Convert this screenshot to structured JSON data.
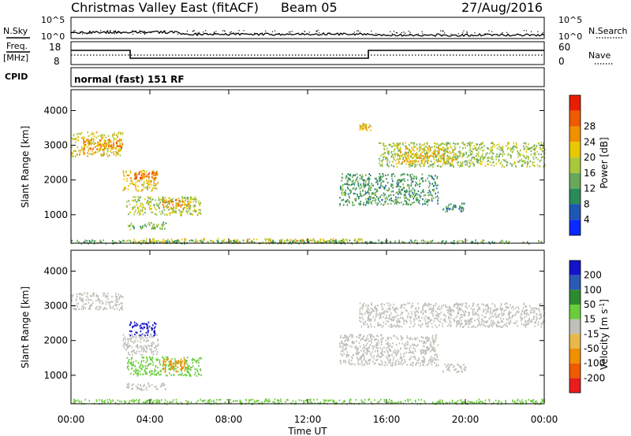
{
  "header": {
    "station": "Christmas Valley East (fitACF)",
    "beam": "Beam 05",
    "date": "27/Aug/2016"
  },
  "noise_panel": {
    "left_label": "N.Sky",
    "right_label": "N.Search",
    "ticks": [
      "10^5",
      "10^0"
    ]
  },
  "freq_panel": {
    "left_label_1": "Freq.",
    "left_label_2": "[MHz]",
    "left_ticks": [
      "18",
      "8"
    ],
    "right_label": "Nave",
    "right_ticks": [
      "60",
      "0"
    ]
  },
  "cpid_panel": {
    "label": "CPID",
    "text": "normal (fast) 151 RF"
  },
  "colors": {
    "power": [
      "#0a28ff",
      "#1e56b4",
      "#2a8a5a",
      "#68a85a",
      "#a8c83c",
      "#e8c800",
      "#f09000",
      "#f05a00",
      "#e81e00"
    ],
    "velocity": [
      "#e81e1e",
      "#f05a00",
      "#f09000",
      "#e8b84a",
      "#c0c0b8",
      "#6ccc3c",
      "#2e8a2e",
      "#2a5ab4",
      "#1414c8"
    ]
  },
  "chart_data": [
    {
      "type": "heatmap",
      "name": "power",
      "ylabel": "Slant Range [km]",
      "ylim": [
        180,
        4600
      ],
      "yticks": [
        1000,
        2000,
        3000,
        4000
      ],
      "xlim": [
        0,
        24
      ],
      "colorbar_label": "Power [dB]",
      "colorbar_ticks": [
        4,
        8,
        12,
        16,
        20,
        24,
        28
      ],
      "colorbar_range": [
        0,
        30
      ],
      "regions": [
        {
          "t": [
            0,
            2.6
          ],
          "r": [
            2700,
            3400
          ],
          "v": 18
        },
        {
          "t": [
            0.6,
            2.6
          ],
          "r": [
            2900,
            3200
          ],
          "v": 23
        },
        {
          "t": [
            2.6,
            4.4
          ],
          "r": [
            1700,
            2300
          ],
          "v": 19
        },
        {
          "t": [
            3.2,
            4.3
          ],
          "r": [
            2050,
            2250
          ],
          "v": 24
        },
        {
          "t": [
            2.8,
            6.6
          ],
          "r": [
            1000,
            1550
          ],
          "v": 15
        },
        {
          "t": [
            4.6,
            6.0
          ],
          "r": [
            1200,
            1450
          ],
          "v": 22
        },
        {
          "t": [
            2.8,
            4.8
          ],
          "r": [
            600,
            800
          ],
          "v": 12
        },
        {
          "t": [
            14.6,
            15.2
          ],
          "r": [
            3450,
            3650
          ],
          "v": 20
        },
        {
          "t": [
            15.6,
            24
          ],
          "r": [
            2400,
            3100
          ],
          "v": 14
        },
        {
          "t": [
            16.5,
            19.5
          ],
          "r": [
            2500,
            3000
          ],
          "v": 19
        },
        {
          "t": [
            13.6,
            18.6
          ],
          "r": [
            1300,
            2200
          ],
          "v": 10
        },
        {
          "t": [
            18.8,
            20.0
          ],
          "r": [
            1100,
            1350
          ],
          "v": 9
        },
        {
          "t": [
            3.0,
            14.8
          ],
          "r": [
            200,
            330
          ],
          "v": 17
        },
        {
          "t": [
            0,
            24
          ],
          "r": [
            190,
            290
          ],
          "v": 11
        }
      ]
    },
    {
      "type": "heatmap",
      "name": "velocity",
      "ylabel": "Slant Range [km]",
      "ylim": [
        180,
        4600
      ],
      "yticks": [
        1000,
        2000,
        3000,
        4000
      ],
      "xlim": [
        0,
        24
      ],
      "colorbar_label": "Velocity [m s^-1]",
      "colorbar_ticks": [
        200,
        100,
        50,
        15,
        -15,
        -50,
        -100,
        -200
      ],
      "regions": [
        {
          "t": [
            0,
            2.6
          ],
          "r": [
            2900,
            3400
          ],
          "v": 0
        },
        {
          "t": [
            2.9,
            4.3
          ],
          "r": [
            2150,
            2550
          ],
          "v": 220
        },
        {
          "t": [
            2.6,
            4.4
          ],
          "r": [
            1600,
            2200
          ],
          "v": 0
        },
        {
          "t": [
            2.8,
            6.6
          ],
          "r": [
            1000,
            1550
          ],
          "v": 40
        },
        {
          "t": [
            4.6,
            5.8
          ],
          "r": [
            1100,
            1500
          ],
          "v": -70
        },
        {
          "t": [
            2.8,
            4.8
          ],
          "r": [
            600,
            800
          ],
          "v": 0
        },
        {
          "t": [
            14.6,
            24
          ],
          "r": [
            2400,
            3100
          ],
          "v": 0
        },
        {
          "t": [
            13.6,
            18.6
          ],
          "r": [
            1300,
            2200
          ],
          "v": 0
        },
        {
          "t": [
            18.8,
            20.0
          ],
          "r": [
            1100,
            1350
          ],
          "v": 0
        },
        {
          "t": [
            0,
            24
          ],
          "r": [
            190,
            330
          ],
          "v": 30
        }
      ]
    }
  ],
  "x_axis": {
    "ticks": [
      "00:00",
      "04:00",
      "08:00",
      "12:00",
      "16:00",
      "20:00",
      "00:00"
    ],
    "label": "Time UT"
  }
}
